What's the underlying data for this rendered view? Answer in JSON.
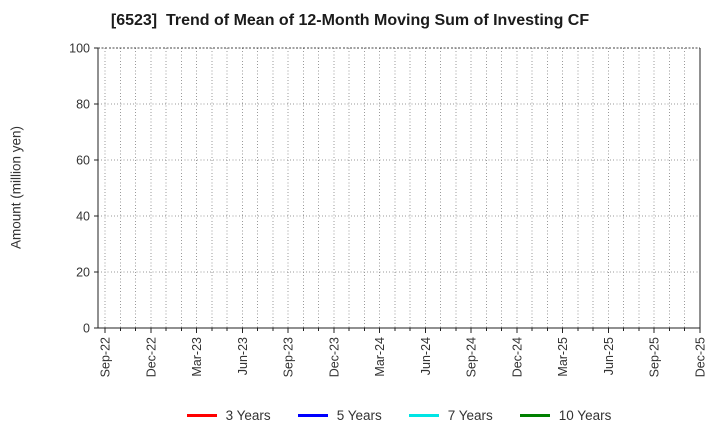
{
  "chart_data": {
    "type": "line",
    "title": "[6523]  Trend of Mean of 12-Month Moving Sum of Investing CF",
    "ylabel": "Amount (million yen)",
    "xlabel": "",
    "ylim": [
      0,
      100
    ],
    "yticks": [
      0,
      20,
      40,
      60,
      80,
      100
    ],
    "x_tick_labels": [
      "Sep-22",
      "Dec-22",
      "Mar-23",
      "Jun-23",
      "Sep-23",
      "Dec-23",
      "Mar-24",
      "Jun-24",
      "Sep-24",
      "Dec-24",
      "Mar-25",
      "Jun-25",
      "Sep-25",
      "Dec-25"
    ],
    "x_minor_per_label": 3,
    "x_minor_unit": "month",
    "grid": true,
    "grid_style": "dotted",
    "plot_empty": true,
    "legend_position": "bottom",
    "series": [
      {
        "name": "3 Years",
        "color": "#ff0000",
        "x": [],
        "values": []
      },
      {
        "name": "5 Years",
        "color": "#0000ff",
        "x": [],
        "values": []
      },
      {
        "name": "7 Years",
        "color": "#00e5e5",
        "x": [],
        "values": []
      },
      {
        "name": "10 Years",
        "color": "#008000",
        "x": [],
        "values": []
      }
    ]
  }
}
